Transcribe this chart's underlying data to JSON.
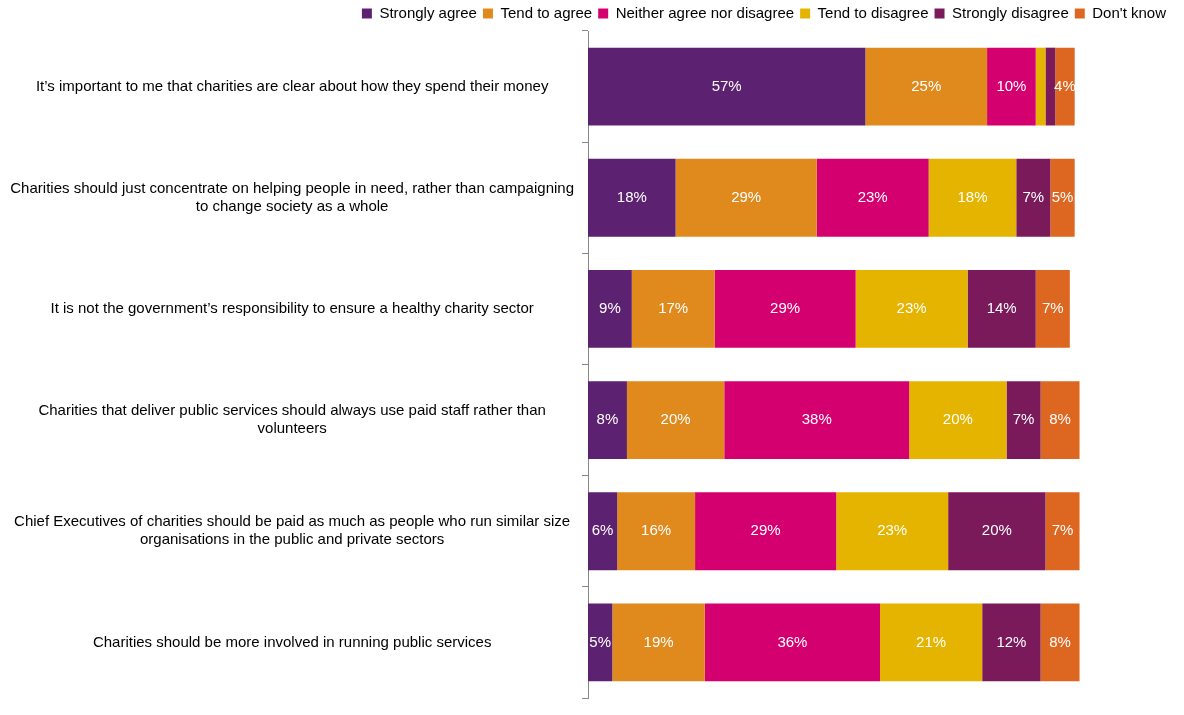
{
  "chart_data": {
    "type": "bar",
    "orientation": "horizontal",
    "stacked": true,
    "legend": "top",
    "categories": [
      "It’s important to me that charities are clear about how they spend their money",
      "Charities should just concentrate on helping people in need, rather than campaigning to change society as a whole",
      "It is not the government’s responsibility to ensure a healthy charity sector",
      "Charities that deliver public services should always use paid staff rather than volunteers",
      "Chief Executives of charities should be paid as much as people who run similar size organisations in the public and private sectors",
      "Charities should be more involved in running public services"
    ],
    "series": [
      {
        "name": "Strongly agree",
        "color": "#5c2170",
        "values": [
          57,
          18,
          9,
          8,
          6,
          5
        ],
        "value_labels": [
          "57%",
          "18%",
          "9%",
          "8%",
          "6%",
          "5%"
        ]
      },
      {
        "name": "Tend to agree",
        "color": "#e08a1e",
        "values": [
          25,
          29,
          17,
          20,
          16,
          19
        ],
        "value_labels": [
          "25%",
          "29%",
          "17%",
          "20%",
          "16%",
          "19%"
        ]
      },
      {
        "name": "Neither agree nor disagree",
        "color": "#d4006f",
        "values": [
          10,
          23,
          29,
          38,
          29,
          36
        ],
        "value_labels": [
          "10%",
          "23%",
          "29%",
          "38%",
          "29%",
          "36%"
        ]
      },
      {
        "name": "Tend to disagree",
        "color": "#e4b400",
        "values": [
          2,
          18,
          23,
          20,
          23,
          21
        ],
        "value_labels": [
          null,
          "18%",
          "23%",
          "20%",
          "23%",
          "21%"
        ]
      },
      {
        "name": "Strongly disagree",
        "color": "#7a1a5a",
        "values": [
          2,
          7,
          14,
          7,
          20,
          12
        ],
        "value_labels": [
          null,
          "7%",
          "14%",
          "7%",
          "20%",
          "12%"
        ]
      },
      {
        "name": "Don't know",
        "color": "#dd6620",
        "values": [
          4,
          5,
          7,
          8,
          7,
          8
        ],
        "value_labels": [
          "4%",
          "5%",
          "7%",
          "8%",
          "7%",
          "8%"
        ]
      }
    ]
  }
}
